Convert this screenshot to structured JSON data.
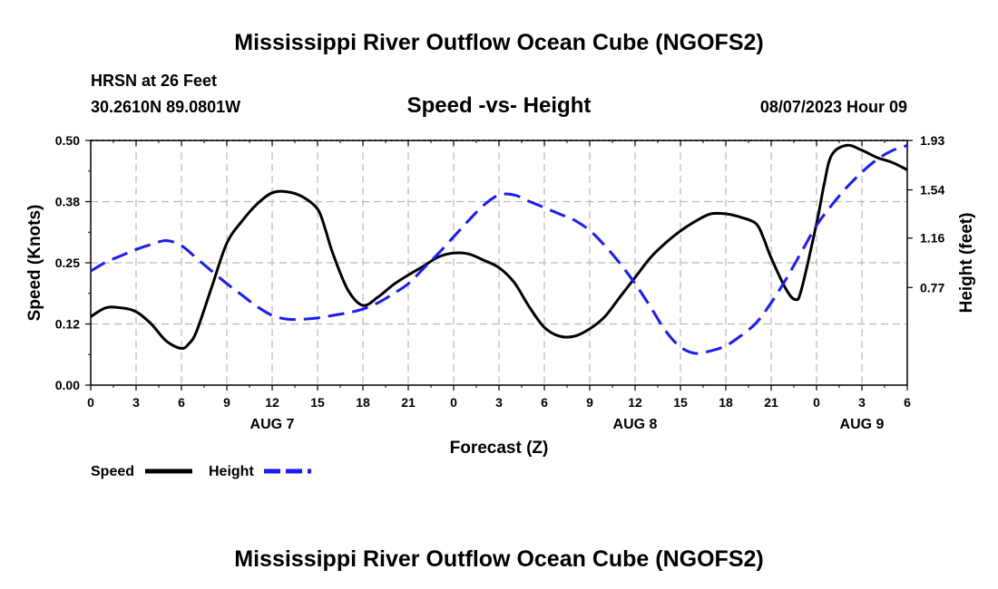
{
  "chart_data": {
    "type": "line",
    "title": "Mississippi River Outflow Ocean Cube (NGOFS2)",
    "station": "HRSN at 26 Feet",
    "location": "30.2610N  89.0801W",
    "subtitle": "Speed -vs- Height",
    "timestamp": "08/07/2023 Hour 09",
    "xlabel": "Forecast (Z)",
    "ylabel_left": "Speed (Knots)",
    "ylabel_right": "Height (feet)",
    "x_range_hours": [
      0,
      54
    ],
    "ylim_left": [
      0,
      0.5
    ],
    "ylim_right": [
      0,
      1.93
    ],
    "y_ticks_left": [
      "0.00",
      "0.12",
      "0.25",
      "0.38",
      "0.50"
    ],
    "y_ticks_right": [
      "0.77",
      "1.16",
      "1.54",
      "1.93"
    ],
    "y_tick_values_right": [
      0.77,
      1.16,
      1.54,
      1.93
    ],
    "x_tick_labels": [
      "0",
      "3",
      "6",
      "9",
      "12",
      "15",
      "18",
      "21",
      "0",
      "3",
      "6",
      "9",
      "12",
      "15",
      "18",
      "21",
      "0",
      "3",
      "6"
    ],
    "date_labels": [
      {
        "label": "AUG 7",
        "hour": 12
      },
      {
        "label": "AUG 8",
        "hour": 36
      },
      {
        "label": "AUG 9",
        "hour": 51
      }
    ],
    "grid": true,
    "legend": [
      {
        "name": "Speed",
        "color": "#000000",
        "style": "solid"
      },
      {
        "name": "Height",
        "color": "#1a1aff",
        "style": "dashed"
      }
    ],
    "series": [
      {
        "name": "Speed",
        "axis": "left",
        "color": "#000000",
        "points": [
          [
            0,
            0.14
          ],
          [
            1,
            0.158
          ],
          [
            2,
            0.158
          ],
          [
            3,
            0.15
          ],
          [
            4,
            0.125
          ],
          [
            5,
            0.09
          ],
          [
            6,
            0.075
          ],
          [
            6.5,
            0.085
          ],
          [
            7,
            0.11
          ],
          [
            8,
            0.2
          ],
          [
            9,
            0.29
          ],
          [
            10,
            0.335
          ],
          [
            11,
            0.37
          ],
          [
            12,
            0.393
          ],
          [
            13,
            0.395
          ],
          [
            14,
            0.385
          ],
          [
            15,
            0.36
          ],
          [
            15.5,
            0.32
          ],
          [
            16,
            0.27
          ],
          [
            17,
            0.195
          ],
          [
            18,
            0.163
          ],
          [
            19,
            0.18
          ],
          [
            20,
            0.205
          ],
          [
            21,
            0.225
          ],
          [
            22,
            0.243
          ],
          [
            23,
            0.262
          ],
          [
            24,
            0.27
          ],
          [
            25,
            0.268
          ],
          [
            26,
            0.255
          ],
          [
            27,
            0.24
          ],
          [
            28,
            0.21
          ],
          [
            29,
            0.16
          ],
          [
            30,
            0.118
          ],
          [
            31,
            0.1
          ],
          [
            32,
            0.1
          ],
          [
            33,
            0.115
          ],
          [
            34,
            0.14
          ],
          [
            35,
            0.18
          ],
          [
            36,
            0.22
          ],
          [
            37,
            0.26
          ],
          [
            38,
            0.29
          ],
          [
            39,
            0.315
          ],
          [
            40,
            0.335
          ],
          [
            41,
            0.35
          ],
          [
            42,
            0.35
          ],
          [
            43,
            0.343
          ],
          [
            44,
            0.33
          ],
          [
            44.5,
            0.3
          ],
          [
            45,
            0.26
          ],
          [
            46,
            0.195
          ],
          [
            46.6,
            0.175
          ],
          [
            47,
            0.195
          ],
          [
            48,
            0.33
          ],
          [
            48.5,
            0.41
          ],
          [
            49,
            0.47
          ],
          [
            50,
            0.49
          ],
          [
            51,
            0.48
          ],
          [
            52,
            0.465
          ],
          [
            53,
            0.455
          ],
          [
            54,
            0.44
          ]
        ]
      },
      {
        "name": "Height",
        "axis": "right",
        "color": "#1a1aff",
        "points": [
          [
            0,
            0.9
          ],
          [
            1,
            0.97
          ],
          [
            2,
            1.02
          ],
          [
            3,
            1.07
          ],
          [
            4,
            1.11
          ],
          [
            5,
            1.14
          ],
          [
            6,
            1.1
          ],
          [
            7,
            1.0
          ],
          [
            8,
            0.9
          ],
          [
            9,
            0.8
          ],
          [
            10,
            0.71
          ],
          [
            11,
            0.62
          ],
          [
            12,
            0.55
          ],
          [
            13,
            0.52
          ],
          [
            14,
            0.52
          ],
          [
            15,
            0.53
          ],
          [
            16,
            0.55
          ],
          [
            17,
            0.57
          ],
          [
            18,
            0.6
          ],
          [
            19,
            0.65
          ],
          [
            20,
            0.72
          ],
          [
            21,
            0.8
          ],
          [
            22,
            0.92
          ],
          [
            23,
            1.04
          ],
          [
            24,
            1.17
          ],
          [
            25,
            1.3
          ],
          [
            26,
            1.42
          ],
          [
            27,
            1.5
          ],
          [
            28,
            1.5
          ],
          [
            29,
            1.45
          ],
          [
            30,
            1.4
          ],
          [
            31,
            1.35
          ],
          [
            32,
            1.3
          ],
          [
            33,
            1.22
          ],
          [
            34,
            1.1
          ],
          [
            35,
            0.96
          ],
          [
            36,
            0.8
          ],
          [
            37,
            0.62
          ],
          [
            38,
            0.43
          ],
          [
            39,
            0.3
          ],
          [
            40,
            0.25
          ],
          [
            41,
            0.27
          ],
          [
            42,
            0.31
          ],
          [
            43,
            0.39
          ],
          [
            44,
            0.49
          ],
          [
            45,
            0.65
          ],
          [
            46,
            0.84
          ],
          [
            47,
            1.05
          ],
          [
            48,
            1.26
          ],
          [
            49,
            1.42
          ],
          [
            50,
            1.56
          ],
          [
            51,
            1.68
          ],
          [
            52,
            1.78
          ],
          [
            53,
            1.85
          ],
          [
            54,
            1.89
          ]
        ]
      }
    ]
  },
  "footer_title": "Mississippi River Outflow Ocean Cube (NGOFS2)"
}
